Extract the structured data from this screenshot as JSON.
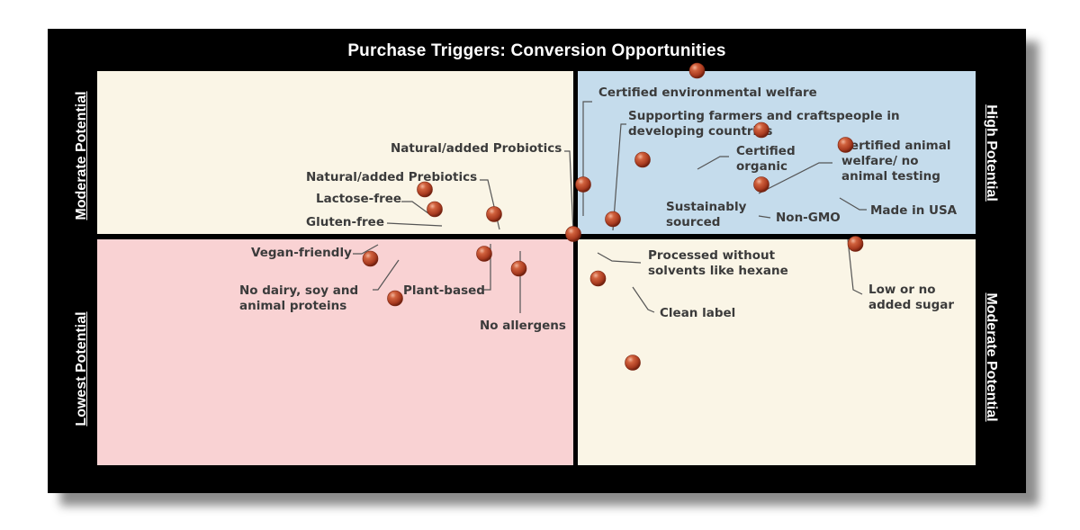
{
  "chart_data": {
    "type": "scatter",
    "title": "Purchase Triggers: Conversion Opportunities",
    "quadrant_labels": {
      "top_left": "Moderate Potential",
      "top_right": "High Potential",
      "bottom_left": "Lowest Potential",
      "bottom_right": "Moderate Potential"
    },
    "quadrant_colors": {
      "top_left": "#faf5e6",
      "top_right": "#c5dcec",
      "bottom_left": "#f9d2d3",
      "bottom_right": "#faf5e6",
      "background": "#000000",
      "marker": "#b5472a"
    },
    "xlim": [
      -10,
      10
    ],
    "ylim": [
      -10,
      10
    ],
    "grid": false,
    "points": [
      {
        "name": "Certified environmental welfare",
        "x": 0.2,
        "y": 1.0
      },
      {
        "name": "Supporting farmers and craftspeople in developing countries",
        "x": 0.8,
        "y": 0.3
      },
      {
        "name": "Natural/added Probiotics",
        "x": -0.0,
        "y": 0.0
      },
      {
        "name": "Certified organic",
        "x": 2.5,
        "y": 3.3
      },
      {
        "name": "Certified animal welfare/ no animal testing",
        "x": 3.8,
        "y": 2.1
      },
      {
        "name": "Sustainably sourced",
        "x": 1.4,
        "y": 1.5
      },
      {
        "name": "Non-GMO",
        "x": 3.8,
        "y": 1.0
      },
      {
        "name": "Made in USA",
        "x": 5.5,
        "y": 1.8
      },
      {
        "name": "Natural/added Prebiotics",
        "x": -1.6,
        "y": 0.4
      },
      {
        "name": "Lactose-free",
        "x": -3.0,
        "y": 0.9
      },
      {
        "name": "Gluten-free",
        "x": -2.8,
        "y": 0.5
      },
      {
        "name": "Vegan-friendly",
        "x": -4.1,
        "y": -0.5
      },
      {
        "name": "No dairy, soy and animal proteins",
        "x": -3.6,
        "y": -1.3
      },
      {
        "name": "Plant-based",
        "x": -1.8,
        "y": -0.4
      },
      {
        "name": "No allergens",
        "x": -1.1,
        "y": -0.7
      },
      {
        "name": "Processed without solvents like hexane",
        "x": 0.5,
        "y": -0.9
      },
      {
        "name": "Clean label",
        "x": 1.2,
        "y": -2.6
      },
      {
        "name": "Low or no added sugar",
        "x": 5.7,
        "y": -0.2
      }
    ],
    "labels": [
      {
        "lines": [
          "Certified environmental welfare"
        ]
      },
      {
        "lines": [
          "Supporting farmers and craftspeople in",
          "developing countries"
        ]
      },
      {
        "lines": [
          "Natural/added Probiotics"
        ]
      },
      {
        "lines": [
          "Certified",
          "organic"
        ]
      },
      {
        "lines": [
          "Certified animal",
          "welfare/ no",
          "animal testing"
        ]
      },
      {
        "lines": [
          "Sustainably",
          "sourced"
        ]
      },
      {
        "lines": [
          "Non-GMO"
        ]
      },
      {
        "lines": [
          "Made in USA"
        ]
      },
      {
        "lines": [
          "Natural/added Prebiotics"
        ]
      },
      {
        "lines": [
          "Lactose-free"
        ]
      },
      {
        "lines": [
          "Gluten-free"
        ]
      },
      {
        "lines": [
          "Vegan-friendly"
        ]
      },
      {
        "lines": [
          "No dairy, soy and",
          "animal proteins"
        ]
      },
      {
        "lines": [
          "Plant-based"
        ]
      },
      {
        "lines": [
          "No allergens"
        ]
      },
      {
        "lines": [
          "Processed without",
          "solvents like hexane"
        ]
      },
      {
        "lines": [
          "Clean label"
        ]
      },
      {
        "lines": [
          "Low or no",
          "added sugar"
        ]
      }
    ]
  }
}
